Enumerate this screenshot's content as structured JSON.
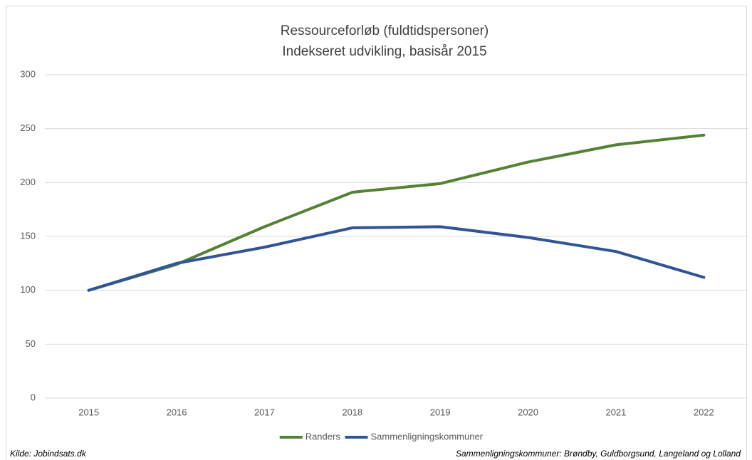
{
  "chart_data": {
    "type": "line",
    "title": "Ressourceforløb (fuldtidspersoner)",
    "subtitle": "Indekseret udvikling, basisår 2015",
    "categories": [
      "2015",
      "2016",
      "2017",
      "2018",
      "2019",
      "2020",
      "2021",
      "2022"
    ],
    "series": [
      {
        "name": "Randers",
        "color": "#548235",
        "values": [
          100,
          124,
          159,
          191,
          199,
          219,
          235,
          244
        ]
      },
      {
        "name": "Sammenligningskommuner",
        "color": "#2f5597",
        "values": [
          100,
          125,
          140,
          158,
          159,
          149,
          136,
          112
        ]
      }
    ],
    "ylim": [
      0,
      300
    ],
    "yticks": [
      0,
      50,
      100,
      150,
      200,
      250,
      300
    ],
    "grid": true,
    "legend": "bottom",
    "source": "Kilde: Jobindsats.dk",
    "note": "Sammenligningskommuner: Brøndby, Guldborgsund, Langeland og Lolland"
  }
}
